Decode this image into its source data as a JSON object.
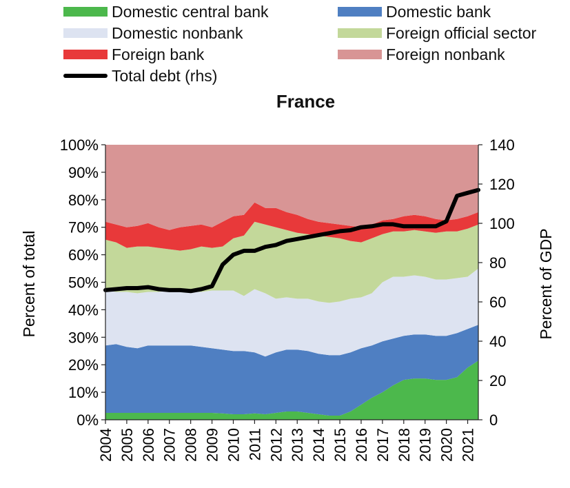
{
  "chart_data": {
    "type": "area",
    "title": "France",
    "ylabel_left": "Percent of total",
    "ylabel_right": "Percent of GDP",
    "ylim_left": [
      0,
      100
    ],
    "ylim_right": [
      0,
      140
    ],
    "yticks_left": [
      "0%",
      "10%",
      "20%",
      "30%",
      "40%",
      "50%",
      "60%",
      "70%",
      "80%",
      "90%",
      "100%"
    ],
    "yticks_right": [
      "0",
      "20",
      "40",
      "60",
      "80",
      "100",
      "120",
      "140"
    ],
    "x_tick_labels": [
      "2004",
      "2005",
      "2006",
      "2007",
      "2008",
      "2009",
      "2010",
      "2011",
      "2012",
      "2013",
      "2014",
      "2015",
      "2016",
      "2017",
      "2018",
      "2019",
      "2020",
      "2021"
    ],
    "x": [
      2004.0,
      2004.5,
      2005.0,
      2005.5,
      2006.0,
      2006.5,
      2007.0,
      2007.5,
      2008.0,
      2008.5,
      2009.0,
      2009.5,
      2010.0,
      2010.5,
      2011.0,
      2011.5,
      2012.0,
      2012.5,
      2013.0,
      2013.5,
      2014.0,
      2014.5,
      2015.0,
      2015.5,
      2016.0,
      2016.5,
      2017.0,
      2017.5,
      2018.0,
      2018.5,
      2019.0,
      2019.5,
      2020.0,
      2020.5,
      2021.0,
      2021.5
    ],
    "series": [
      {
        "name": "Domestic central bank",
        "kind": "area",
        "color": "#4cb84c",
        "values": [
          2.5,
          2.5,
          2.5,
          2.5,
          2.5,
          2.5,
          2.5,
          2.5,
          2.5,
          2.5,
          2.5,
          2.3,
          2.0,
          2.0,
          2.3,
          2.0,
          2.5,
          3.0,
          3.0,
          2.5,
          2.0,
          1.5,
          1.5,
          3.0,
          5.5,
          8.0,
          10.0,
          12.5,
          14.5,
          15.0,
          15.0,
          14.5,
          14.5,
          15.5,
          19.0,
          21.5
        ]
      },
      {
        "name": "Domestic bank",
        "kind": "area",
        "color": "#4f7fc2",
        "values": [
          27.0,
          27.5,
          26.5,
          26.0,
          27.0,
          27.0,
          27.0,
          27.0,
          27.0,
          26.5,
          26.0,
          25.5,
          25.0,
          25.0,
          24.5,
          23.0,
          24.5,
          25.5,
          25.5,
          25.0,
          24.0,
          23.5,
          23.5,
          24.5,
          26.0,
          27.0,
          28.5,
          29.5,
          30.5,
          31.0,
          31.0,
          30.5,
          30.5,
          31.5,
          33.0,
          34.5
        ]
      },
      {
        "name": "Domestic nonbank",
        "kind": "area",
        "color": "#dde3f1",
        "values": [
          47.0,
          46.5,
          46.5,
          46.0,
          46.5,
          46.5,
          47.0,
          46.5,
          46.5,
          46.5,
          47.0,
          47.0,
          47.0,
          45.0,
          47.5,
          46.0,
          44.0,
          44.5,
          44.0,
          44.0,
          43.0,
          42.5,
          43.0,
          44.0,
          44.5,
          46.0,
          50.0,
          52.0,
          52.0,
          52.5,
          52.0,
          51.0,
          51.0,
          51.5,
          52.0,
          55.0
        ]
      },
      {
        "name": "Foreign official sector",
        "kind": "area",
        "color": "#c3d89a",
        "values": [
          65.5,
          64.5,
          62.5,
          63.0,
          63.0,
          62.5,
          62.0,
          61.5,
          62.0,
          63.0,
          62.5,
          63.0,
          66.0,
          67.0,
          72.0,
          71.0,
          70.0,
          69.0,
          68.0,
          67.5,
          67.0,
          66.5,
          66.0,
          65.0,
          64.5,
          66.0,
          67.5,
          68.5,
          68.5,
          69.0,
          68.5,
          68.0,
          68.5,
          68.5,
          69.5,
          71.0
        ]
      },
      {
        "name": "Foreign bank",
        "kind": "area",
        "color": "#e8393a",
        "values": [
          72.0,
          71.0,
          70.0,
          70.5,
          71.5,
          70.0,
          69.0,
          70.0,
          70.5,
          71.0,
          70.0,
          72.0,
          74.0,
          74.5,
          79.0,
          77.0,
          77.0,
          75.5,
          74.5,
          73.0,
          72.0,
          71.5,
          71.0,
          70.5,
          70.0,
          71.0,
          72.5,
          73.0,
          74.0,
          74.5,
          74.0,
          73.0,
          72.5,
          73.0,
          74.0,
          75.5
        ]
      },
      {
        "name": "Foreign nonbank",
        "kind": "area",
        "color": "#d89595",
        "values": [
          100,
          100,
          100,
          100,
          100,
          100,
          100,
          100,
          100,
          100,
          100,
          100,
          100,
          100,
          100,
          100,
          100,
          100,
          100,
          100,
          100,
          100,
          100,
          100,
          100,
          100,
          100,
          100,
          100,
          100,
          100,
          100,
          100,
          100,
          100,
          100
        ]
      },
      {
        "name": "Total debt (rhs)",
        "kind": "line",
        "axis": "right",
        "color": "#000000",
        "values": [
          66,
          66.5,
          67,
          67,
          67.5,
          66.5,
          66,
          66,
          65.5,
          66.5,
          68,
          79,
          84,
          86,
          86,
          88,
          89,
          91,
          92,
          93,
          94,
          95,
          96,
          96.5,
          98,
          98.5,
          99.5,
          99.5,
          98.5,
          98.5,
          98.5,
          98.5,
          101,
          114,
          115.5,
          117
        ]
      }
    ]
  }
}
